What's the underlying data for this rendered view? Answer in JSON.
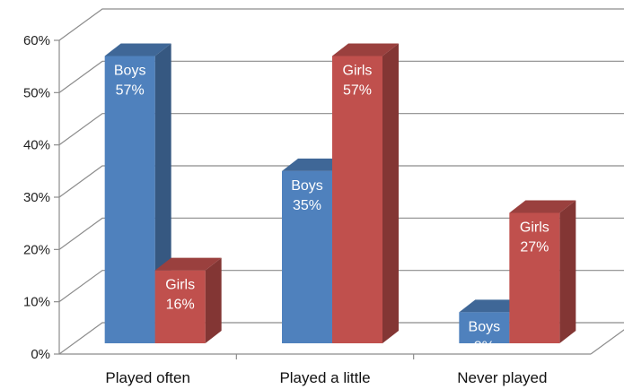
{
  "chart_data": {
    "type": "bar",
    "title": "",
    "xlabel": "",
    "ylabel": "",
    "categories": [
      "Played often",
      "Played a little",
      "Never played"
    ],
    "series": [
      {
        "name": "Boys",
        "values": [
          57,
          35,
          8
        ],
        "color": "#4f81bd"
      },
      {
        "name": "Girls",
        "values": [
          16,
          57,
          27
        ],
        "color": "#c0504d"
      }
    ],
    "ylim": [
      0,
      60
    ],
    "yticks": [
      "0%",
      "10%",
      "20%",
      "30%",
      "40%",
      "50%",
      "60%"
    ],
    "value_suffix": "%",
    "grid": true,
    "legend": "none",
    "style": "3d-clustered-column"
  }
}
